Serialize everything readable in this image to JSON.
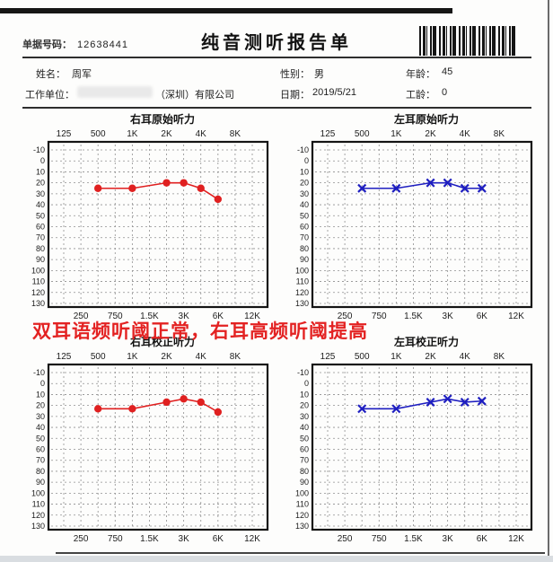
{
  "page": {
    "title": "纯音测听报告单",
    "doc_number_label": "单据号码：",
    "doc_number": "12638441",
    "fields": {
      "name_label": "姓名：",
      "name": "周军",
      "gender_label": "性别：",
      "gender": "男",
      "age_label": "年龄：",
      "age": "45",
      "company_label": "工作单位：",
      "company_suffix": "（深圳）有限公司",
      "date_label": "日期：",
      "date": "2019/5/21",
      "work_years_label": "工龄：",
      "work_years": "0"
    },
    "annotation": "双耳语频听阈正常，右耳高频听阈提高"
  },
  "chart_data": [
    {
      "type": "line",
      "title": "右耳原始听力",
      "marker": "circle",
      "color": "#e02020",
      "x_categories": [
        "125",
        "250",
        "500",
        "750",
        "1K",
        "1.5K",
        "2K",
        "3K",
        "4K",
        "6K",
        "8K",
        "12K"
      ],
      "top_axis_labels": [
        "125",
        "500",
        "1K",
        "2K",
        "4K",
        "8K"
      ],
      "bottom_axis_labels": [
        "250",
        "750",
        "1.5K",
        "3K",
        "6K",
        "12K"
      ],
      "y_ticks": [
        -10,
        0,
        10,
        20,
        30,
        40,
        50,
        60,
        70,
        80,
        90,
        100,
        110,
        120,
        130
      ],
      "ylim": [
        -10,
        130
      ],
      "grid": true,
      "points": {
        "frequencies_hz": [
          500,
          1000,
          2000,
          3000,
          4000,
          6000
        ],
        "col_indices": [
          2,
          4,
          6,
          7,
          8,
          9
        ],
        "thresholds_db": [
          25,
          25,
          20,
          20,
          25,
          35
        ]
      }
    },
    {
      "type": "line",
      "title": "左耳原始听力",
      "marker": "x",
      "color": "#1e1ec0",
      "x_categories": [
        "125",
        "250",
        "500",
        "750",
        "1K",
        "1.5K",
        "2K",
        "3K",
        "4K",
        "6K",
        "8K",
        "12K"
      ],
      "top_axis_labels": [
        "125",
        "500",
        "1K",
        "2K",
        "4K",
        "8K"
      ],
      "bottom_axis_labels": [
        "250",
        "750",
        "1.5K",
        "3K",
        "6K",
        "12K"
      ],
      "y_ticks": [
        -10,
        0,
        10,
        20,
        30,
        40,
        50,
        60,
        70,
        80,
        90,
        100,
        110,
        120,
        130
      ],
      "ylim": [
        -10,
        130
      ],
      "grid": true,
      "points": {
        "frequencies_hz": [
          500,
          1000,
          2000,
          3000,
          4000,
          6000
        ],
        "col_indices": [
          2,
          4,
          6,
          7,
          8,
          9
        ],
        "thresholds_db": [
          25,
          25,
          20,
          20,
          25,
          25
        ]
      }
    },
    {
      "type": "line",
      "title": "右耳校正听力",
      "marker": "circle",
      "color": "#e02020",
      "x_categories": [
        "125",
        "250",
        "500",
        "750",
        "1K",
        "1.5K",
        "2K",
        "3K",
        "4K",
        "6K",
        "8K",
        "12K"
      ],
      "top_axis_labels": [
        "125",
        "500",
        "1K",
        "2K",
        "4K",
        "8K"
      ],
      "bottom_axis_labels": [
        "250",
        "750",
        "1.5K",
        "3K",
        "6K",
        "12K"
      ],
      "y_ticks": [
        -10,
        0,
        10,
        20,
        30,
        40,
        50,
        60,
        70,
        80,
        90,
        100,
        110,
        120,
        130
      ],
      "ylim": [
        -10,
        130
      ],
      "grid": true,
      "points": {
        "frequencies_hz": [
          500,
          1000,
          2000,
          3000,
          4000,
          6000
        ],
        "col_indices": [
          2,
          4,
          6,
          7,
          8,
          9
        ],
        "thresholds_db": [
          23,
          23,
          17,
          14,
          17,
          26
        ]
      }
    },
    {
      "type": "line",
      "title": "左耳校正听力",
      "marker": "x",
      "color": "#1e1ec0",
      "x_categories": [
        "125",
        "250",
        "500",
        "750",
        "1K",
        "1.5K",
        "2K",
        "3K",
        "4K",
        "6K",
        "8K",
        "12K"
      ],
      "top_axis_labels": [
        "125",
        "500",
        "1K",
        "2K",
        "4K",
        "8K"
      ],
      "bottom_axis_labels": [
        "250",
        "750",
        "1.5K",
        "3K",
        "6K",
        "12K"
      ],
      "y_ticks": [
        -10,
        0,
        10,
        20,
        30,
        40,
        50,
        60,
        70,
        80,
        90,
        100,
        110,
        120,
        130
      ],
      "ylim": [
        -10,
        130
      ],
      "grid": true,
      "points": {
        "frequencies_hz": [
          500,
          1000,
          2000,
          3000,
          4000,
          6000
        ],
        "col_indices": [
          2,
          4,
          6,
          7,
          8,
          9
        ],
        "thresholds_db": [
          23,
          23,
          17,
          14,
          17,
          16
        ]
      }
    }
  ]
}
